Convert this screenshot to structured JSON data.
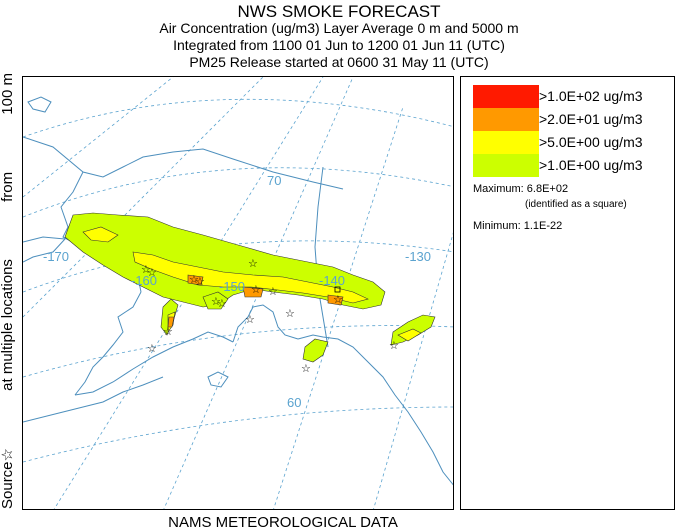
{
  "titles": {
    "line1": "NWS SMOKE FORECAST",
    "line2": "Air Concentration (ug/m3) Layer Average     0 m and  5000 m",
    "line3": "Integrated from 1100 01 Jun to 1200 01 Jun 11 (UTC)",
    "line4": "PM25 Release started at 0600 31 May 11 (UTC)"
  },
  "side_label": {
    "source": "Source",
    "star": "☆",
    "at_multiple": "at multiple locations",
    "from": "from",
    "height": "100 m"
  },
  "bottom_label": "NAMS METEOROLOGICAL DATA",
  "legend": {
    "entries": [
      {
        "label": ">1.0E+02 ug/m3",
        "color": "#ff1a00"
      },
      {
        "label": ">2.0E+01 ug/m3",
        "color": "#ff9900"
      },
      {
        "label": ">5.0E+00 ug/m3",
        "color": "#ffff00"
      },
      {
        "label": ">1.0E+00 ug/m3",
        "color": "#ccff00"
      }
    ],
    "maximum": "Maximum: 6.8E+02",
    "maximum_note": "(identified as a square)",
    "minimum": "Minimum: 1.1E-22"
  },
  "map": {
    "graticule_labels": {
      "lat_70": "70",
      "lat_60": "60",
      "lon_170": "-170",
      "lon_160": "-160",
      "lon_150": "-150",
      "lon_140": "-140",
      "lon_130": "-130"
    },
    "colors": {
      "coast": "#4d8fbd",
      "graticule": "#5ba3cf",
      "contour": "#333333"
    }
  }
}
